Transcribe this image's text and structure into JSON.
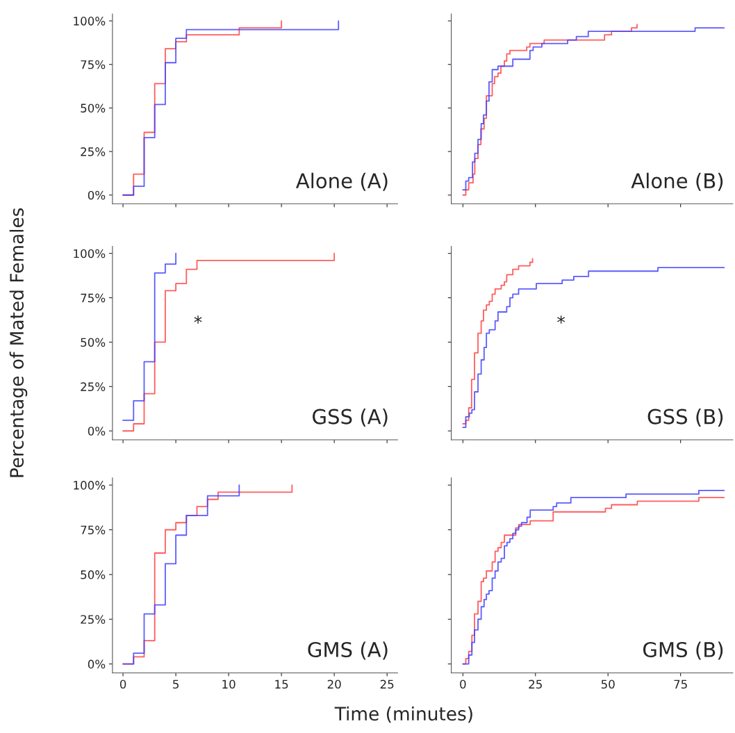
{
  "chart_data": [
    {
      "type": "step",
      "title": "Alone (A)",
      "xlim": [
        -1,
        26
      ],
      "xticks": [
        0,
        5,
        10,
        15,
        20,
        25
      ],
      "ylim": [
        -5,
        104
      ],
      "yticks": [
        {
          "value": 0,
          "label": "0%"
        },
        {
          "value": 25,
          "label": "25%"
        },
        {
          "value": 50,
          "label": "50%"
        },
        {
          "value": 75,
          "label": "75%"
        },
        {
          "value": 100,
          "label": "100%"
        }
      ],
      "tick_labels": "y",
      "series": [
        {
          "color": "#ff4040",
          "x": [
            0,
            1,
            2,
            3,
            4,
            5,
            6,
            11,
            15
          ],
          "values": [
            0,
            12,
            36,
            64,
            84,
            88,
            92,
            96,
            100
          ]
        },
        {
          "color": "#4040ff",
          "x": [
            0,
            1,
            2,
            3,
            4,
            5,
            6,
            20.4
          ],
          "values": [
            0,
            5,
            33,
            52,
            76,
            90,
            95,
            100
          ]
        }
      ]
    },
    {
      "type": "step",
      "title": "Alone (B)",
      "xlim": [
        -4,
        93
      ],
      "xticks": [
        0,
        25,
        50,
        75
      ],
      "ylim": [
        -5,
        104
      ],
      "yticks": [
        0,
        25,
        50,
        75,
        100
      ],
      "tick_labels": false,
      "series": [
        {
          "color": "#ff4040",
          "x": [
            0,
            1,
            2,
            3.5,
            4.1,
            5.2,
            6.2,
            7.3,
            8.1,
            10.1,
            10.9,
            12.1,
            13.1,
            14.3,
            15.1,
            16.2,
            22,
            23.1,
            28,
            48.8,
            51.2,
            58.1,
            60
          ],
          "values": [
            0,
            3,
            7,
            12,
            21,
            29,
            38,
            44,
            57,
            64,
            68,
            70,
            74,
            77,
            81,
            83,
            85,
            87,
            89,
            92,
            94,
            96,
            98
          ]
        },
        {
          "color": "#4040ff",
          "x": [
            0,
            1,
            2,
            3.3,
            4.1,
            5.2,
            6.3,
            7.1,
            8.1,
            9,
            10.1,
            12.1,
            17.2,
            23.1,
            24.2,
            27.2,
            36.1,
            39.1,
            43.2,
            80,
            90
          ],
          "values": [
            3,
            8,
            10,
            19,
            24,
            32,
            41,
            46,
            54,
            65,
            72,
            74,
            78,
            83,
            85,
            87,
            89,
            91,
            94,
            96,
            96
          ]
        }
      ]
    },
    {
      "type": "step",
      "title": "GSS (A)",
      "ylabel": "Percentage of Mated Females",
      "annotations": [
        "*"
      ],
      "xlim": [
        -1,
        26
      ],
      "xticks": [
        0,
        5,
        10,
        15,
        20,
        25
      ],
      "ylim": [
        -5,
        104
      ],
      "yticks": [
        {
          "value": 0,
          "label": "0%"
        },
        {
          "value": 25,
          "label": "25%"
        },
        {
          "value": 50,
          "label": "50%"
        },
        {
          "value": 75,
          "label": "75%"
        },
        {
          "value": 100,
          "label": "100%"
        }
      ],
      "tick_labels": "y",
      "series": [
        {
          "color": "#ff4040",
          "x": [
            0,
            1,
            2,
            3,
            4,
            5,
            6,
            7,
            20
          ],
          "values": [
            0,
            4,
            21,
            50,
            79,
            83,
            91,
            96,
            100
          ]
        },
        {
          "color": "#4040ff",
          "x": [
            0,
            1,
            2,
            3,
            4,
            5
          ],
          "values": [
            6,
            17,
            39,
            89,
            94,
            100
          ]
        }
      ]
    },
    {
      "type": "step",
      "title": "GSS (B)",
      "annotations": [
        "*"
      ],
      "xlim": [
        -4,
        93
      ],
      "xticks": [
        0,
        25,
        50,
        75
      ],
      "ylim": [
        -5,
        104
      ],
      "yticks": [
        0,
        25,
        50,
        75,
        100
      ],
      "tick_labels": false,
      "series": [
        {
          "color": "#ff4040",
          "x": [
            0,
            1,
            2,
            3,
            4,
            5.2,
            6.3,
            7.1,
            8.1,
            9.1,
            10.1,
            11.1,
            13.2,
            14.3,
            15.1,
            17.2,
            19.2,
            23.1,
            24
          ],
          "values": [
            4,
            6,
            13,
            29,
            44,
            55,
            62,
            68,
            71,
            73,
            77,
            80,
            82,
            84,
            88,
            91,
            93,
            95,
            97
          ]
        },
        {
          "color": "#4040ff",
          "x": [
            0,
            1,
            2.2,
            3.1,
            4,
            5.2,
            6.3,
            7.3,
            8.1,
            9.1,
            11.1,
            12.1,
            15.1,
            16.2,
            17.2,
            19.2,
            25.3,
            34.2,
            38.2,
            43.3,
            67.2,
            90
          ],
          "values": [
            2,
            8,
            10,
            12,
            22,
            32,
            40,
            47,
            55,
            57,
            62,
            67,
            70,
            75,
            77,
            80,
            83,
            85,
            87,
            90,
            92,
            92
          ]
        }
      ]
    },
    {
      "type": "step",
      "title": "GMS (A)",
      "xlabel": "Time (minutes)",
      "xlim": [
        -1,
        26
      ],
      "xticks": [
        0,
        5,
        10,
        15,
        20,
        25
      ],
      "ylim": [
        -5,
        104
      ],
      "yticks": [
        {
          "value": 0,
          "label": "0%"
        },
        {
          "value": 25,
          "label": "25%"
        },
        {
          "value": 50,
          "label": "50%"
        },
        {
          "value": 75,
          "label": "75%"
        },
        {
          "value": 100,
          "label": "100%"
        }
      ],
      "series": [
        {
          "color": "#ff4040",
          "x": [
            0,
            1,
            2,
            3,
            4,
            5,
            6,
            7,
            8,
            9,
            16
          ],
          "values": [
            0,
            4,
            13,
            62,
            75,
            79,
            83,
            88,
            92,
            96,
            100
          ]
        },
        {
          "color": "#4040ff",
          "x": [
            0,
            1,
            2,
            3,
            4,
            5,
            6,
            8,
            11
          ],
          "values": [
            0,
            6,
            28,
            33,
            56,
            72,
            83,
            94,
            100
          ]
        }
      ]
    },
    {
      "type": "step",
      "title": "GMS (B)",
      "xlim": [
        -4,
        93
      ],
      "xticks": [
        0,
        25,
        50,
        75
      ],
      "ylim": [
        -5,
        104
      ],
      "yticks": [
        0,
        25,
        50,
        75,
        100
      ],
      "tick_labels": "x",
      "series": [
        {
          "color": "#ff4040",
          "x": [
            0,
            1,
            2,
            3.1,
            4,
            5.2,
            6.3,
            7.1,
            8.1,
            10.1,
            11.1,
            12.1,
            13.2,
            14.3,
            18.2,
            19.3,
            23.2,
            31.1,
            49.1,
            51.2,
            60.1,
            81.3,
            90
          ],
          "values": [
            0,
            3,
            7,
            16,
            28,
            35,
            46,
            48,
            52,
            57,
            63,
            65,
            68,
            72,
            76,
            78,
            80,
            85,
            87,
            89,
            91,
            93,
            93
          ]
        },
        {
          "color": "#4040ff",
          "x": [
            0,
            2,
            3.1,
            4,
            5.2,
            6.3,
            7.3,
            8.1,
            9,
            10.1,
            11.1,
            12.1,
            13.2,
            14.3,
            15.2,
            16.2,
            17.2,
            18.2,
            19.2,
            20.2,
            22.1,
            23.2,
            31.1,
            32.3,
            37.2,
            56.2,
            81.3,
            90
          ],
          "values": [
            0,
            5,
            12,
            19,
            25,
            32,
            36,
            39,
            41,
            48,
            52,
            57,
            59,
            66,
            68,
            70,
            73,
            75,
            77,
            79,
            82,
            86,
            88,
            90,
            93,
            95,
            97,
            97
          ]
        }
      ]
    }
  ]
}
